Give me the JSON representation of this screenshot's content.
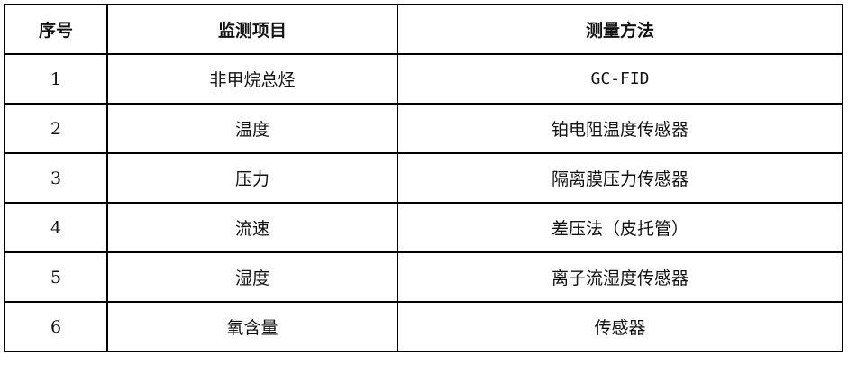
{
  "headers": [
    "序号",
    "监测项目",
    "测量方法"
  ],
  "rows": [
    {
      "no": "1",
      "item": "非甲烷总烃",
      "method": "GC-FID"
    },
    {
      "no": "2",
      "item": "温度",
      "method": "铂电阻温度传感器"
    },
    {
      "no": "3",
      "item": "压力",
      "method": "隔离膜压力传感器"
    },
    {
      "no": "4",
      "item": "流速",
      "method": "差压法（皮托管）"
    },
    {
      "no": "5",
      "item": "湿度",
      "method": "离子流湿度传感器"
    },
    {
      "no": "6",
      "item": "氧含量",
      "method": "传感器"
    }
  ]
}
